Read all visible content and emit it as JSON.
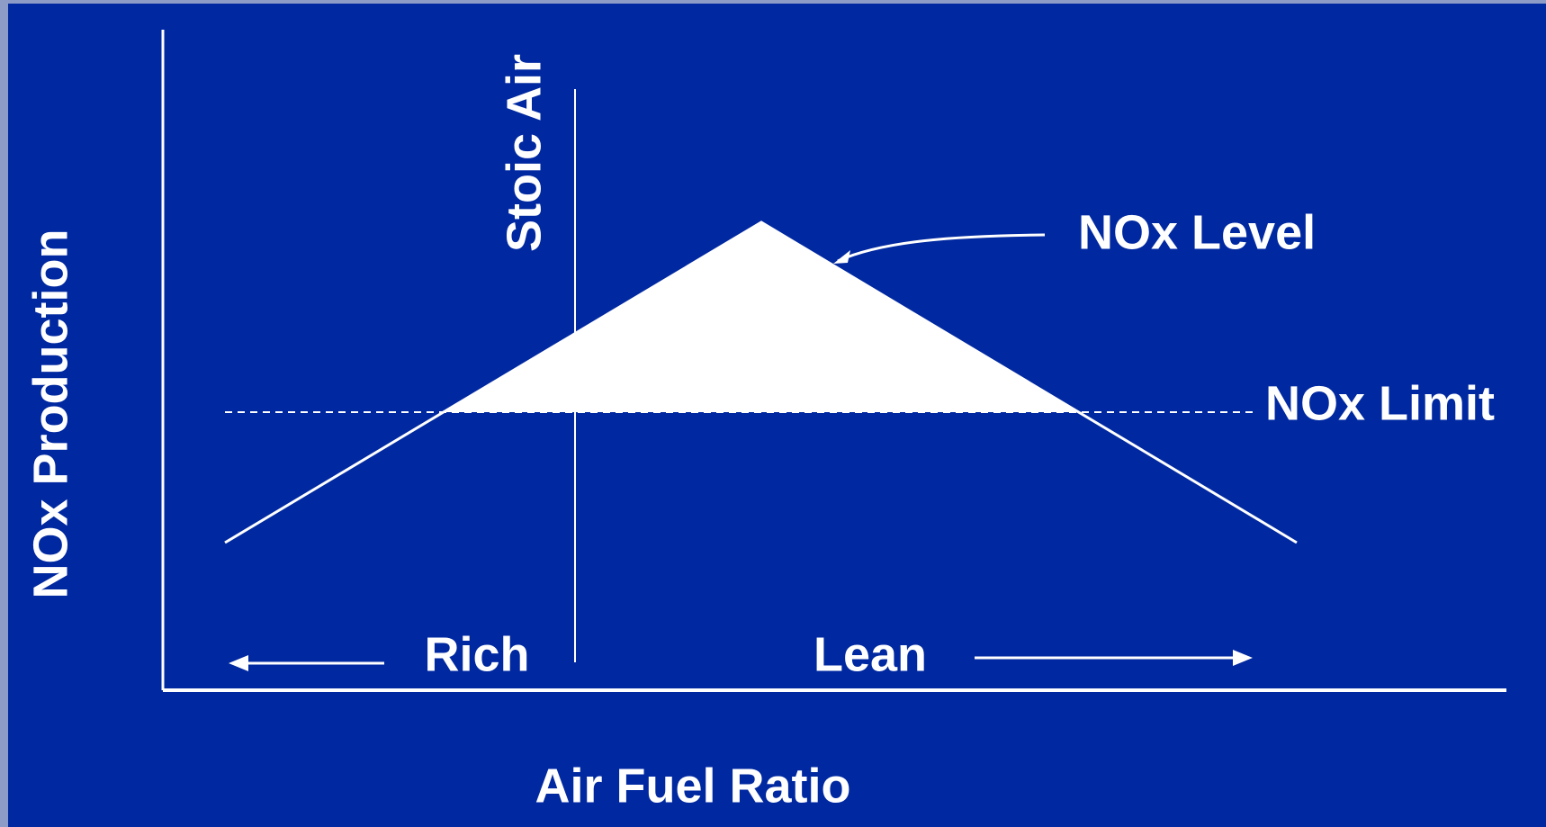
{
  "labels": {
    "vertical_line": "Stoic Air",
    "curve": "NOx Level",
    "limit": "NOx Limit",
    "y_axis": "NOx Production",
    "x_axis": "Air Fuel Ratio",
    "left_region": "Rich",
    "right_region": "Lean"
  }
}
